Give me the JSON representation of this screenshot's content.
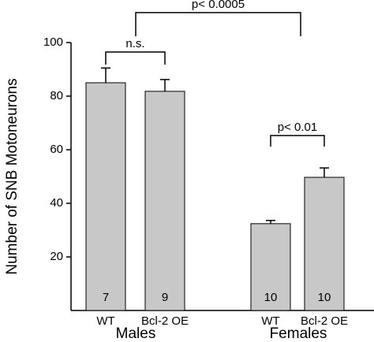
{
  "chart_data": {
    "type": "bar",
    "y_label": "Number of SNB Motoneurons",
    "categories": [
      "WT",
      "Bcl-2 OE",
      "WT",
      "Bcl-2 OE"
    ],
    "groups": [
      "Males",
      "Females"
    ],
    "values": [
      85,
      81.8,
      32.4,
      49.7
    ],
    "errors": [
      5.5,
      4.4,
      1.2,
      3.5
    ],
    "sample_sizes": [
      7,
      9,
      10,
      10
    ],
    "color": "#c8c8c8",
    "ylim": [
      0,
      100
    ],
    "yticks": [
      20,
      40,
      60,
      80,
      100
    ],
    "annotations": [
      "n.s.",
      "p< 0.01",
      "p< 0.0005"
    ]
  }
}
